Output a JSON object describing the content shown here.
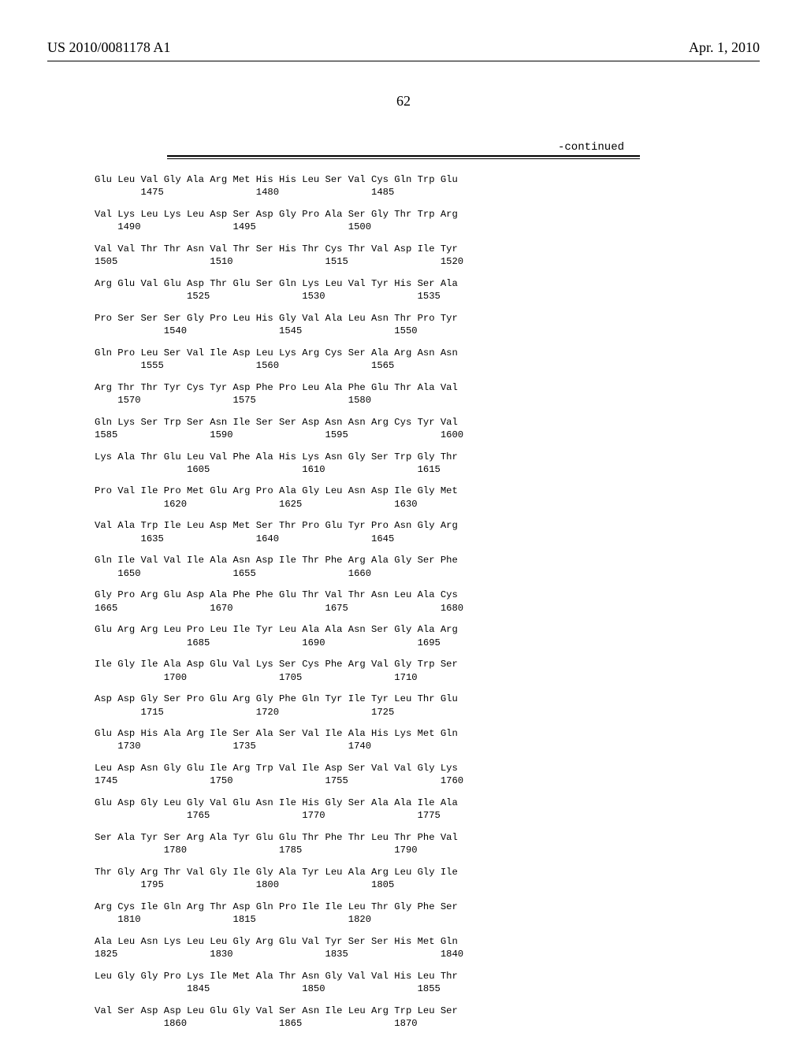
{
  "header": {
    "left": "US 2010/0081178 A1",
    "right": "Apr. 1, 2010"
  },
  "page_number": "62",
  "continued_label": "-continued",
  "sequence_rows": [
    {
      "aa": "Glu Leu Val Gly Ala Arg Met His His Leu Ser Val Cys Gln Trp Glu",
      "num": "        1475                1480                1485"
    },
    {
      "aa": "Val Lys Leu Lys Leu Asp Ser Asp Gly Pro Ala Ser Gly Thr Trp Arg",
      "num": "    1490                1495                1500"
    },
    {
      "aa": "Val Val Thr Thr Asn Val Thr Ser His Thr Cys Thr Val Asp Ile Tyr",
      "num": "1505                1510                1515                1520"
    },
    {
      "aa": "Arg Glu Val Glu Asp Thr Glu Ser Gln Lys Leu Val Tyr His Ser Ala",
      "num": "                1525                1530                1535"
    },
    {
      "aa": "Pro Ser Ser Ser Gly Pro Leu His Gly Val Ala Leu Asn Thr Pro Tyr",
      "num": "            1540                1545                1550"
    },
    {
      "aa": "Gln Pro Leu Ser Val Ile Asp Leu Lys Arg Cys Ser Ala Arg Asn Asn",
      "num": "        1555                1560                1565"
    },
    {
      "aa": "Arg Thr Thr Tyr Cys Tyr Asp Phe Pro Leu Ala Phe Glu Thr Ala Val",
      "num": "    1570                1575                1580"
    },
    {
      "aa": "Gln Lys Ser Trp Ser Asn Ile Ser Ser Asp Asn Asn Arg Cys Tyr Val",
      "num": "1585                1590                1595                1600"
    },
    {
      "aa": "Lys Ala Thr Glu Leu Val Phe Ala His Lys Asn Gly Ser Trp Gly Thr",
      "num": "                1605                1610                1615"
    },
    {
      "aa": "Pro Val Ile Pro Met Glu Arg Pro Ala Gly Leu Asn Asp Ile Gly Met",
      "num": "            1620                1625                1630"
    },
    {
      "aa": "Val Ala Trp Ile Leu Asp Met Ser Thr Pro Glu Tyr Pro Asn Gly Arg",
      "num": "        1635                1640                1645"
    },
    {
      "aa": "Gln Ile Val Val Ile Ala Asn Asp Ile Thr Phe Arg Ala Gly Ser Phe",
      "num": "    1650                1655                1660"
    },
    {
      "aa": "Gly Pro Arg Glu Asp Ala Phe Phe Glu Thr Val Thr Asn Leu Ala Cys",
      "num": "1665                1670                1675                1680"
    },
    {
      "aa": "Glu Arg Arg Leu Pro Leu Ile Tyr Leu Ala Ala Asn Ser Gly Ala Arg",
      "num": "                1685                1690                1695"
    },
    {
      "aa": "Ile Gly Ile Ala Asp Glu Val Lys Ser Cys Phe Arg Val Gly Trp Ser",
      "num": "            1700                1705                1710"
    },
    {
      "aa": "Asp Asp Gly Ser Pro Glu Arg Gly Phe Gln Tyr Ile Tyr Leu Thr Glu",
      "num": "        1715                1720                1725"
    },
    {
      "aa": "Glu Asp His Ala Arg Ile Ser Ala Ser Val Ile Ala His Lys Met Gln",
      "num": "    1730                1735                1740"
    },
    {
      "aa": "Leu Asp Asn Gly Glu Ile Arg Trp Val Ile Asp Ser Val Val Gly Lys",
      "num": "1745                1750                1755                1760"
    },
    {
      "aa": "Glu Asp Gly Leu Gly Val Glu Asn Ile His Gly Ser Ala Ala Ile Ala",
      "num": "                1765                1770                1775"
    },
    {
      "aa": "Ser Ala Tyr Ser Arg Ala Tyr Glu Glu Thr Phe Thr Leu Thr Phe Val",
      "num": "            1780                1785                1790"
    },
    {
      "aa": "Thr Gly Arg Thr Val Gly Ile Gly Ala Tyr Leu Ala Arg Leu Gly Ile",
      "num": "        1795                1800                1805"
    },
    {
      "aa": "Arg Cys Ile Gln Arg Thr Asp Gln Pro Ile Ile Leu Thr Gly Phe Ser",
      "num": "    1810                1815                1820"
    },
    {
      "aa": "Ala Leu Asn Lys Leu Leu Gly Arg Glu Val Tyr Ser Ser His Met Gln",
      "num": "1825                1830                1835                1840"
    },
    {
      "aa": "Leu Gly Gly Pro Lys Ile Met Ala Thr Asn Gly Val Val His Leu Thr",
      "num": "                1845                1850                1855"
    },
    {
      "aa": "Val Ser Asp Asp Leu Glu Gly Val Ser Asn Ile Leu Arg Trp Leu Ser",
      "num": "            1860                1865                1870"
    }
  ]
}
